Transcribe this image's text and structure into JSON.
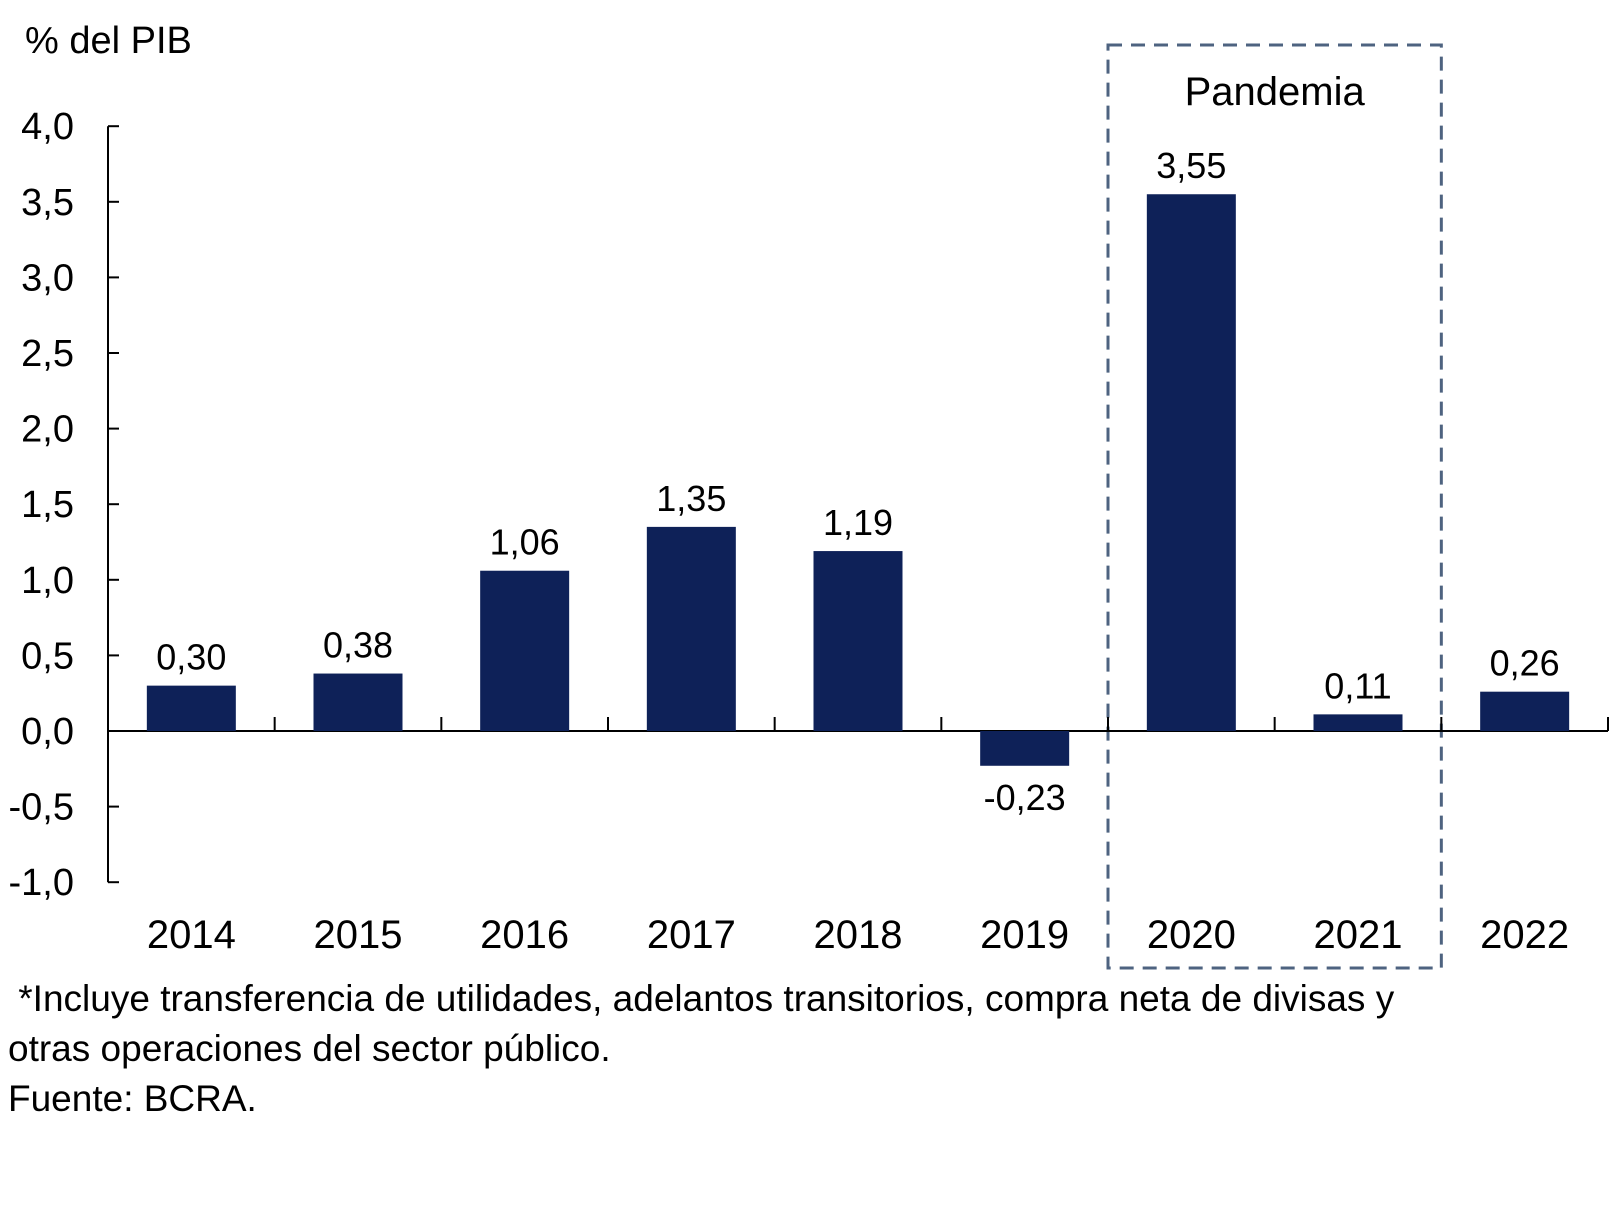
{
  "chart_data": {
    "type": "bar",
    "title": "",
    "ylabel": "% del PIB",
    "xlabel": "",
    "categories": [
      "2014",
      "2015",
      "2016",
      "2017",
      "2018",
      "2019",
      "2020",
      "2021",
      "2022"
    ],
    "values": [
      0.3,
      0.38,
      1.06,
      1.35,
      1.19,
      -0.23,
      3.55,
      0.11,
      0.26
    ],
    "value_labels": [
      "0,30",
      "0,38",
      "1,06",
      "1,35",
      "1,19",
      "-0,23",
      "3,55",
      "0,11",
      "0,26"
    ],
    "ylim": [
      -1.0,
      4.0
    ],
    "ytick_step": 0.5,
    "ytick_labels": [
      "4,0",
      "3,5",
      "3,0",
      "2,5",
      "2,0",
      "1,5",
      "1,0",
      "0,5",
      "0,0",
      "-0,5",
      "-1,0"
    ],
    "grid": false,
    "legend": false,
    "bar_color": "#0E2158",
    "axis_color": "#000000",
    "text_color": "#000000",
    "annotation": {
      "label": "Pandemia",
      "categories": [
        "2020",
        "2021"
      ],
      "border_color": "#4E6380"
    }
  },
  "footnote": {
    "line1": " *Incluye transferencia de utilidades, adelantos transitorios, compra neta de divisas y",
    "line2": "otras operaciones del sector público.",
    "line3": "Fuente: BCRA."
  }
}
